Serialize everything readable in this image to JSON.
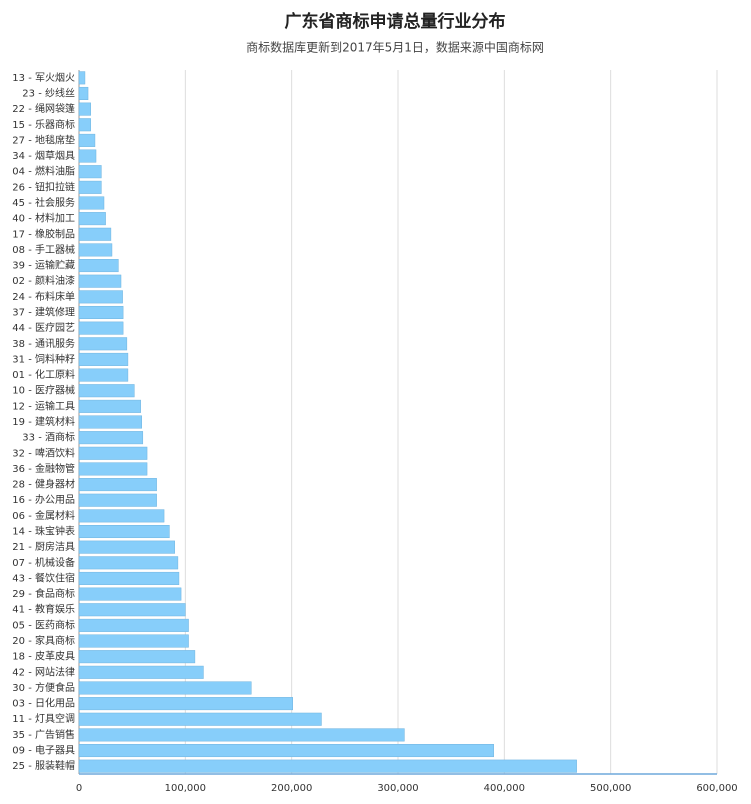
{
  "chart_data": {
    "type": "barh",
    "title": "广东省商标申请总量行业分布",
    "subtitle": "商标数据库更新到2017年5月1日，数据来源中国商标网",
    "categories": [
      "13 - 军火烟火",
      "23 - 纱线丝",
      "22 - 绳网袋篷",
      "15 - 乐器商标",
      "27 - 地毯席垫",
      "34 - 烟草烟具",
      "04 - 燃料油脂",
      "26 - 钮扣拉链",
      "45 - 社会服务",
      "40 - 材料加工",
      "17 - 橡胶制品",
      "08 - 手工器械",
      "39 - 运输贮藏",
      "02 - 颜料油漆",
      "24 - 布料床单",
      "37 - 建筑修理",
      "44 - 医疗园艺",
      "38 - 通讯服务",
      "31 - 饲料种籽",
      "01 - 化工原料",
      "10 - 医疗器械",
      "12 - 运输工具",
      "19 - 建筑材料",
      "33 - 酒商标",
      "32 - 啤酒饮料",
      "36 - 金融物管",
      "28 - 健身器材",
      "16 - 办公用品",
      "06 - 金属材料",
      "14 - 珠宝钟表",
      "21 - 厨房洁具",
      "07 - 机械设备",
      "43 - 餐饮住宿",
      "29 - 食品商标",
      "41 - 教育娱乐",
      "05 - 医药商标",
      "20 - 家具商标",
      "18 - 皮革皮具",
      "42 - 网站法律",
      "30 - 方便食品",
      "03 - 日化用品",
      "11 - 灯具空调",
      "35 - 广告销售",
      "09 - 电子器具",
      "25 - 服装鞋帽"
    ],
    "values": [
      5600,
      8500,
      11000,
      11000,
      15000,
      16000,
      21000,
      21000,
      23500,
      25000,
      30000,
      31000,
      37000,
      39500,
      41000,
      41500,
      41500,
      45000,
      46000,
      46000,
      52000,
      58000,
      59000,
      60000,
      64000,
      64000,
      73000,
      73000,
      80000,
      85000,
      90000,
      93000,
      94000,
      96000,
      100000,
      103000,
      103000,
      109000,
      117000,
      162000,
      201000,
      228000,
      306000,
      390000,
      468000
    ],
    "color": "#87cefa",
    "xlim": [
      0,
      600000
    ],
    "xticks": [
      0,
      {
        "value": 100000,
        "label": "100,000"
      },
      {
        "value": 200000,
        "label": "200,000"
      },
      {
        "value": 300000,
        "label": "300,000"
      },
      {
        "value": 400000,
        "label": "400,000"
      },
      {
        "value": 500000,
        "label": "500,000"
      },
      {
        "value": 600000,
        "label": "600,000"
      }
    ],
    "grid": true
  }
}
